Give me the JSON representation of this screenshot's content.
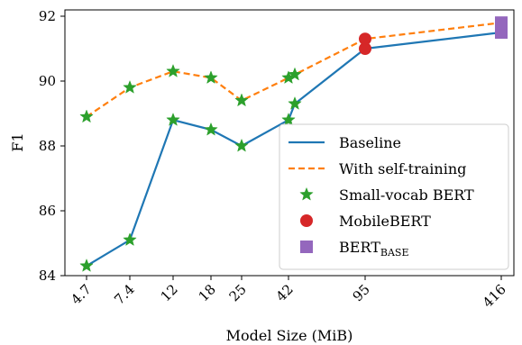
{
  "chart_data": {
    "type": "line",
    "xlabel": "Model Size (MiB)",
    "ylabel": "F1",
    "ylim": [
      84,
      92
    ],
    "yticks": [
      84,
      86,
      88,
      90,
      92
    ],
    "x_tick_labels": [
      "4.7",
      "7.4",
      "12",
      "18",
      "25",
      "42",
      "95",
      "416"
    ],
    "x_scale": "categorical-ish (log-like spacing)",
    "grid": false,
    "legend_placement": "bottom-right",
    "series": [
      {
        "name": "Baseline",
        "style": "solid",
        "color": "#1f77b4",
        "points": [
          {
            "x": "4.7",
            "y": 84.3
          },
          {
            "x": "7.4",
            "y": 85.1
          },
          {
            "x": "12",
            "y": 88.8
          },
          {
            "x": "18",
            "y": 88.5
          },
          {
            "x": "25",
            "y": 88.0
          },
          {
            "x": "42",
            "y": 88.8
          },
          {
            "x": "44",
            "y": 89.3
          },
          {
            "x": "95",
            "y": 91.0
          },
          {
            "x": "416",
            "y": 91.5
          }
        ]
      },
      {
        "name": "With self-training",
        "style": "dashed",
        "color": "#ff7f0e",
        "points": [
          {
            "x": "4.7",
            "y": 88.9
          },
          {
            "x": "7.4",
            "y": 89.8
          },
          {
            "x": "12",
            "y": 90.3
          },
          {
            "x": "18",
            "y": 90.1
          },
          {
            "x": "25",
            "y": 89.4
          },
          {
            "x": "42",
            "y": 90.1
          },
          {
            "x": "44",
            "y": 90.2
          },
          {
            "x": "95",
            "y": 91.3
          },
          {
            "x": "416",
            "y": 91.8
          }
        ]
      }
    ],
    "markers": [
      {
        "name": "Small-vocab BERT",
        "shape": "star",
        "color": "#2ca02c",
        "points": [
          {
            "x": "4.7",
            "y": 84.3
          },
          {
            "x": "7.4",
            "y": 85.1
          },
          {
            "x": "12",
            "y": 88.8
          },
          {
            "x": "18",
            "y": 88.5
          },
          {
            "x": "25",
            "y": 88.0
          },
          {
            "x": "42",
            "y": 88.8
          },
          {
            "x": "44",
            "y": 89.3
          },
          {
            "x": "4.7",
            "y": 88.9
          },
          {
            "x": "7.4",
            "y": 89.8
          },
          {
            "x": "12",
            "y": 90.3
          },
          {
            "x": "18",
            "y": 90.1
          },
          {
            "x": "25",
            "y": 89.4
          },
          {
            "x": "42",
            "y": 90.1
          },
          {
            "x": "44",
            "y": 90.2
          }
        ]
      },
      {
        "name": "MobileBERT",
        "shape": "circle",
        "color": "#d62728",
        "points": [
          {
            "x": "95",
            "y": 91.0
          },
          {
            "x": "95",
            "y": 91.3
          }
        ]
      },
      {
        "name": "BERT",
        "name_sub": "BASE",
        "shape": "square",
        "color": "#9467bd",
        "points": [
          {
            "x": "416",
            "y": 91.5
          },
          {
            "x": "416",
            "y": 91.8
          }
        ]
      }
    ]
  }
}
